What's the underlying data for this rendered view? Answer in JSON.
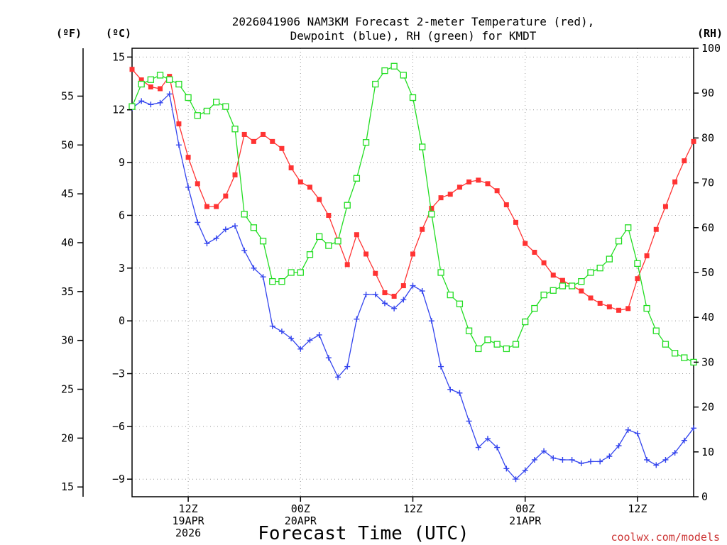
{
  "chart_data": {
    "type": "line",
    "title_line1": "2026041906 NAM3KM Forecast 2-meter Temperature (red),",
    "title_line2": "Dewpoint (blue), RH (green) for KMDT",
    "axis_units": {
      "fahrenheit": "(ºF)",
      "celsius": "(ºC)",
      "rh": "(RH)"
    },
    "xlabel": "Forecast Time (UTC)",
    "credit": "coolwx.com/models",
    "x_range_hours": [
      0,
      60
    ],
    "c_range": [
      -10,
      15.5
    ],
    "rh_range": [
      0,
      100
    ],
    "celsius_ticks": [
      15,
      12,
      9,
      6,
      3,
      0,
      -3,
      -6,
      -9
    ],
    "fahrenheit_ticks": [
      55,
      50,
      45,
      40,
      35,
      30,
      25,
      20,
      15
    ],
    "rh_ticks": [
      100,
      90,
      80,
      70,
      60,
      50,
      40,
      30,
      20,
      10,
      0
    ],
    "x_ticks": [
      {
        "hour": 6,
        "lines": [
          "12Z",
          "19APR",
          "2026"
        ]
      },
      {
        "hour": 18,
        "lines": [
          "00Z",
          "20APR"
        ]
      },
      {
        "hour": 30,
        "lines": [
          "12Z"
        ]
      },
      {
        "hour": 42,
        "lines": [
          "00Z",
          "21APR"
        ]
      },
      {
        "hour": 54,
        "lines": [
          "12Z"
        ]
      }
    ],
    "series": [
      {
        "name": "2-meter Temperature",
        "color": "#ff3333",
        "marker": "filled-square",
        "axis": "celsius",
        "x": [
          0,
          1,
          2,
          3,
          4,
          5,
          6,
          7,
          8,
          9,
          10,
          11,
          12,
          13,
          14,
          15,
          16,
          17,
          18,
          19,
          20,
          21,
          22,
          23,
          24,
          25,
          26,
          27,
          28,
          29,
          30,
          31,
          32,
          33,
          34,
          35,
          36,
          37,
          38,
          39,
          40,
          41,
          42,
          43,
          44,
          45,
          46,
          47,
          48,
          49,
          50,
          51,
          52,
          53,
          54,
          55,
          56,
          57,
          58,
          59,
          60
        ],
        "values": [
          14.3,
          13.7,
          13.3,
          13.2,
          13.9,
          11.2,
          9.3,
          7.8,
          6.5,
          6.5,
          7.1,
          8.3,
          10.6,
          10.2,
          10.6,
          10.2,
          9.8,
          8.7,
          7.9,
          7.6,
          6.9,
          6.0,
          4.6,
          3.2,
          4.9,
          3.8,
          2.7,
          1.6,
          1.4,
          2.0,
          3.8,
          5.2,
          6.4,
          7.0,
          7.2,
          7.6,
          7.9,
          8.0,
          7.8,
          7.4,
          6.6,
          5.6,
          4.4,
          3.9,
          3.3,
          2.6,
          2.3,
          2.0,
          1.7,
          1.3,
          1.0,
          0.8,
          0.6,
          0.7,
          2.4,
          3.7,
          5.2,
          6.5,
          7.9,
          9.1,
          10.2
        ]
      },
      {
        "name": "Dewpoint",
        "color": "#3344ee",
        "marker": "plus",
        "axis": "celsius",
        "x": [
          0,
          1,
          2,
          3,
          4,
          5,
          6,
          7,
          8,
          9,
          10,
          11,
          12,
          13,
          14,
          15,
          16,
          17,
          18,
          19,
          20,
          21,
          22,
          23,
          24,
          25,
          26,
          27,
          28,
          29,
          30,
          31,
          32,
          33,
          34,
          35,
          36,
          37,
          38,
          39,
          40,
          41,
          42,
          43,
          44,
          45,
          46,
          47,
          48,
          49,
          50,
          51,
          52,
          53,
          54,
          55,
          56,
          57,
          58,
          59,
          60
        ],
        "values": [
          12.1,
          12.5,
          12.3,
          12.4,
          12.9,
          10.0,
          7.6,
          5.6,
          4.4,
          4.7,
          5.2,
          5.4,
          4.0,
          3.0,
          2.5,
          -0.3,
          -0.6,
          -1.0,
          -1.6,
          -1.1,
          -0.8,
          -2.1,
          -3.2,
          -2.6,
          0.1,
          1.5,
          1.5,
          1.0,
          0.7,
          1.2,
          2.0,
          1.7,
          0.0,
          -2.6,
          -3.9,
          -4.1,
          -5.7,
          -7.2,
          -6.7,
          -7.2,
          -8.4,
          -9.0,
          -8.5,
          -7.9,
          -7.4,
          -7.8,
          -7.9,
          -7.9,
          -8.1,
          -8.0,
          -8.0,
          -7.7,
          -7.1,
          -6.2,
          -6.4,
          -7.9,
          -8.2,
          -7.9,
          -7.5,
          -6.8,
          -6.1
        ]
      },
      {
        "name": "RH",
        "color": "#22dd22",
        "marker": "open-square",
        "axis": "rh",
        "x": [
          0,
          1,
          2,
          3,
          4,
          5,
          6,
          7,
          8,
          9,
          10,
          11,
          12,
          13,
          14,
          15,
          16,
          17,
          18,
          19,
          20,
          21,
          22,
          23,
          24,
          25,
          26,
          27,
          28,
          29,
          30,
          31,
          32,
          33,
          34,
          35,
          36,
          37,
          38,
          39,
          40,
          41,
          42,
          43,
          44,
          45,
          46,
          47,
          48,
          49,
          50,
          51,
          52,
          53,
          54,
          55,
          56,
          57,
          58,
          59,
          60
        ],
        "values": [
          87,
          92,
          93,
          94,
          93,
          92,
          89,
          85,
          86,
          88,
          87,
          82,
          63,
          60,
          57,
          48,
          48,
          50,
          50,
          54,
          58,
          56,
          57,
          65,
          71,
          79,
          92,
          95,
          96,
          94,
          89,
          78,
          63,
          50,
          45,
          43,
          37,
          33,
          35,
          34,
          33,
          34,
          39,
          42,
          45,
          46,
          47,
          47,
          48,
          50,
          51,
          53,
          57,
          60,
          52,
          42,
          37,
          34,
          32,
          31,
          30
        ]
      }
    ]
  }
}
